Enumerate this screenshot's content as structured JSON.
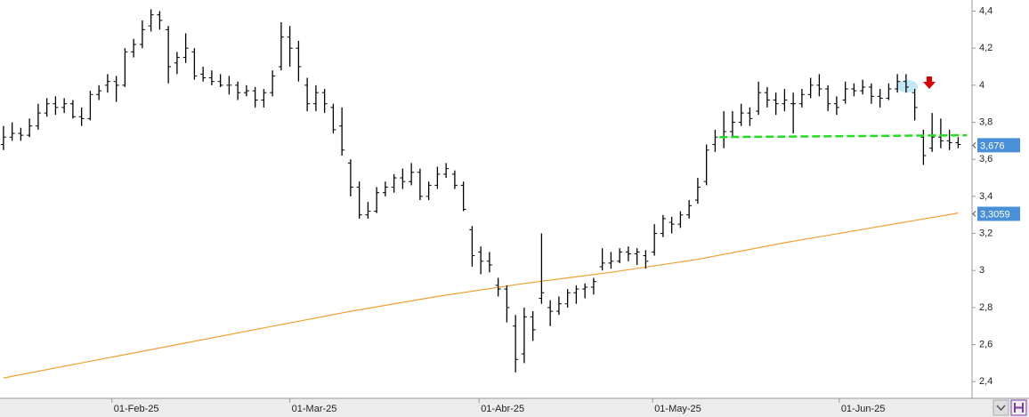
{
  "chart_data": {
    "type": "ohlc",
    "ohlc": [
      [
        3.68,
        3.78,
        3.65,
        3.72
      ],
      [
        3.72,
        3.8,
        3.7,
        3.74
      ],
      [
        3.74,
        3.77,
        3.7,
        3.73
      ],
      [
        3.73,
        3.82,
        3.72,
        3.78
      ],
      [
        3.78,
        3.9,
        3.76,
        3.85
      ],
      [
        3.85,
        3.93,
        3.83,
        3.9
      ],
      [
        3.9,
        3.94,
        3.84,
        3.88
      ],
      [
        3.88,
        3.93,
        3.85,
        3.9
      ],
      [
        3.9,
        3.92,
        3.82,
        3.83
      ],
      [
        3.83,
        3.88,
        3.78,
        3.82
      ],
      [
        3.82,
        3.97,
        3.81,
        3.95
      ],
      [
        3.95,
        4.0,
        3.92,
        3.97
      ],
      [
        4.0,
        4.06,
        3.96,
        4.02
      ],
      [
        4.02,
        4.05,
        3.91,
        4.0
      ],
      [
        4.0,
        4.2,
        3.99,
        4.18
      ],
      [
        4.18,
        4.25,
        4.15,
        4.22
      ],
      [
        4.22,
        4.35,
        4.2,
        4.3
      ],
      [
        4.32,
        4.41,
        4.29,
        4.38
      ],
      [
        4.38,
        4.4,
        4.3,
        4.35
      ],
      [
        4.3,
        4.32,
        4.01,
        4.1
      ],
      [
        4.12,
        4.18,
        4.06,
        4.15
      ],
      [
        4.15,
        4.28,
        4.12,
        4.2
      ],
      [
        4.18,
        4.2,
        4.03,
        4.05
      ],
      [
        4.06,
        4.1,
        4.02,
        4.04
      ],
      [
        4.04,
        4.08,
        4.0,
        4.02
      ],
      [
        4.02,
        4.06,
        3.99,
        4.0
      ],
      [
        4.0,
        4.05,
        3.95,
        4.0
      ],
      [
        4.0,
        4.02,
        3.92,
        3.96
      ],
      [
        3.96,
        4.0,
        3.94,
        3.97
      ],
      [
        3.97,
        3.99,
        3.88,
        3.92
      ],
      [
        3.92,
        3.98,
        3.88,
        3.96
      ],
      [
        3.96,
        4.08,
        3.94,
        4.05
      ],
      [
        4.1,
        4.34,
        4.08,
        4.26
      ],
      [
        4.26,
        4.32,
        4.1,
        4.2
      ],
      [
        4.2,
        4.24,
        4.02,
        4.1
      ],
      [
        4.0,
        4.04,
        3.86,
        3.9
      ],
      [
        3.9,
        4.0,
        3.86,
        3.96
      ],
      [
        3.96,
        3.98,
        3.85,
        3.9
      ],
      [
        3.88,
        3.9,
        3.74,
        3.76
      ],
      [
        3.78,
        3.88,
        3.62,
        3.65
      ],
      [
        3.58,
        3.6,
        3.4,
        3.45
      ],
      [
        3.45,
        3.48,
        3.28,
        3.3
      ],
      [
        3.3,
        3.37,
        3.28,
        3.32
      ],
      [
        3.32,
        3.45,
        3.31,
        3.42
      ],
      [
        3.42,
        3.48,
        3.4,
        3.45
      ],
      [
        3.45,
        3.52,
        3.42,
        3.5
      ],
      [
        3.5,
        3.55,
        3.44,
        3.48
      ],
      [
        3.48,
        3.58,
        3.46,
        3.53
      ],
      [
        3.53,
        3.55,
        3.38,
        3.4
      ],
      [
        3.4,
        3.48,
        3.38,
        3.46
      ],
      [
        3.46,
        3.56,
        3.44,
        3.52
      ],
      [
        3.52,
        3.58,
        3.5,
        3.55
      ],
      [
        3.52,
        3.54,
        3.44,
        3.46
      ],
      [
        3.46,
        3.48,
        3.32,
        3.33
      ],
      [
        3.22,
        3.24,
        3.02,
        3.08
      ],
      [
        3.1,
        3.13,
        2.98,
        3.05
      ],
      [
        3.05,
        3.1,
        2.99,
        3.03
      ],
      [
        2.92,
        2.96,
        2.86,
        2.9
      ],
      [
        2.9,
        2.92,
        2.72,
        2.8
      ],
      [
        2.7,
        2.76,
        2.45,
        2.52
      ],
      [
        2.55,
        2.8,
        2.5,
        2.75
      ],
      [
        2.75,
        2.78,
        2.62,
        2.68
      ],
      [
        2.85,
        3.2,
        2.82,
        2.88
      ],
      [
        2.8,
        2.84,
        2.7,
        2.78
      ],
      [
        2.78,
        2.86,
        2.76,
        2.82
      ],
      [
        2.82,
        2.9,
        2.8,
        2.88
      ],
      [
        2.88,
        2.92,
        2.82,
        2.9
      ],
      [
        2.9,
        2.93,
        2.85,
        2.91
      ],
      [
        2.91,
        2.96,
        2.87,
        2.94
      ],
      [
        3.02,
        3.12,
        3.0,
        3.04
      ],
      [
        3.04,
        3.1,
        3.01,
        3.05
      ],
      [
        3.05,
        3.12,
        3.04,
        3.1
      ],
      [
        3.1,
        3.13,
        3.05,
        3.09
      ],
      [
        3.09,
        3.12,
        3.03,
        3.1
      ],
      [
        3.08,
        3.11,
        3.01,
        3.05
      ],
      [
        3.1,
        3.25,
        3.08,
        3.2
      ],
      [
        3.2,
        3.3,
        3.18,
        3.28
      ],
      [
        3.26,
        3.29,
        3.2,
        3.25
      ],
      [
        3.25,
        3.32,
        3.23,
        3.3
      ],
      [
        3.3,
        3.38,
        3.28,
        3.35
      ],
      [
        3.38,
        3.5,
        3.36,
        3.45
      ],
      [
        3.48,
        3.68,
        3.46,
        3.65
      ],
      [
        3.68,
        3.76,
        3.64,
        3.72
      ],
      [
        3.72,
        3.86,
        3.66,
        3.75
      ],
      [
        3.75,
        3.86,
        3.72,
        3.8
      ],
      [
        3.8,
        3.9,
        3.78,
        3.85
      ],
      [
        3.85,
        3.88,
        3.78,
        3.82
      ],
      [
        3.86,
        4.02,
        3.84,
        3.96
      ],
      [
        3.96,
        3.99,
        3.88,
        3.92
      ],
      [
        3.92,
        3.96,
        3.84,
        3.9
      ],
      [
        3.9,
        3.98,
        3.86,
        3.92
      ],
      [
        3.9,
        3.96,
        3.74,
        3.9
      ],
      [
        3.9,
        3.98,
        3.88,
        3.95
      ],
      [
        3.95,
        4.04,
        3.93,
        4.0
      ],
      [
        4.0,
        4.06,
        3.94,
        3.98
      ],
      [
        3.98,
        4.0,
        3.86,
        3.9
      ],
      [
        3.9,
        3.94,
        3.84,
        3.88
      ],
      [
        3.92,
        4.02,
        3.9,
        3.98
      ],
      [
        3.98,
        4.01,
        3.94,
        3.97
      ],
      [
        3.97,
        4.03,
        3.95,
        3.99
      ],
      [
        3.99,
        4.01,
        3.9,
        3.94
      ],
      [
        3.94,
        3.98,
        3.88,
        3.93
      ],
      [
        3.93,
        4.01,
        3.92,
        3.98
      ],
      [
        3.98,
        4.06,
        3.96,
        4.02
      ],
      [
        4.02,
        4.06,
        3.96,
        3.99
      ],
      [
        3.96,
        3.98,
        3.81,
        3.88
      ],
      [
        3.72,
        3.76,
        3.57,
        3.62
      ],
      [
        3.66,
        3.85,
        3.64,
        3.72
      ],
      [
        3.72,
        3.82,
        3.66,
        3.7
      ],
      [
        3.7,
        3.76,
        3.65,
        3.69
      ],
      [
        3.69,
        3.72,
        3.66,
        3.68
      ]
    ],
    "color": "#000000",
    "moving_average": {
      "color": "#f0a030",
      "x": [
        0,
        10,
        20,
        30,
        40,
        50,
        60,
        70,
        80,
        90,
        100,
        110
      ],
      "values": [
        2.42,
        2.51,
        2.6,
        2.69,
        2.78,
        2.86,
        2.93,
        2.99,
        3.06,
        3.15,
        3.23,
        3.31
      ]
    },
    "level": {
      "color": "#22dd22",
      "x": [
        82.5,
        111
      ],
      "values": [
        3.72,
        3.73
      ]
    },
    "last_label": {
      "value": 3.676,
      "label": "3,676"
    },
    "ma_label": {
      "value": 3.3059,
      "label": "3,3059"
    },
    "label_color": "#4a90d9",
    "xlim": [
      -0.4,
      111.6
    ],
    "ylim": [
      2.31,
      4.46
    ],
    "yticks": [
      {
        "value": 2.4,
        "label": "2,4"
      },
      {
        "value": 2.6,
        "label": "2,6"
      },
      {
        "value": 2.8,
        "label": "2,8"
      },
      3,
      {
        "value": 3.2,
        "label": "3,2"
      },
      {
        "value": 3.4,
        "label": "3,4"
      },
      {
        "value": 3.6,
        "label": "3,6"
      },
      {
        "value": 3.8,
        "label": "3,8"
      },
      4,
      {
        "value": 4.2,
        "label": "4,2"
      },
      {
        "value": 4.4,
        "label": "4,4"
      }
    ],
    "xticks": [
      {
        "value": 12.5,
        "label": "01-Feb-25"
      },
      {
        "value": 33,
        "label": "01-Mar-25"
      },
      {
        "value": 54.8,
        "label": "01-Abr-25"
      },
      {
        "value": 74.8,
        "label": "01-May-25"
      },
      {
        "value": 96.3,
        "label": "01-Jun-25"
      }
    ]
  }
}
